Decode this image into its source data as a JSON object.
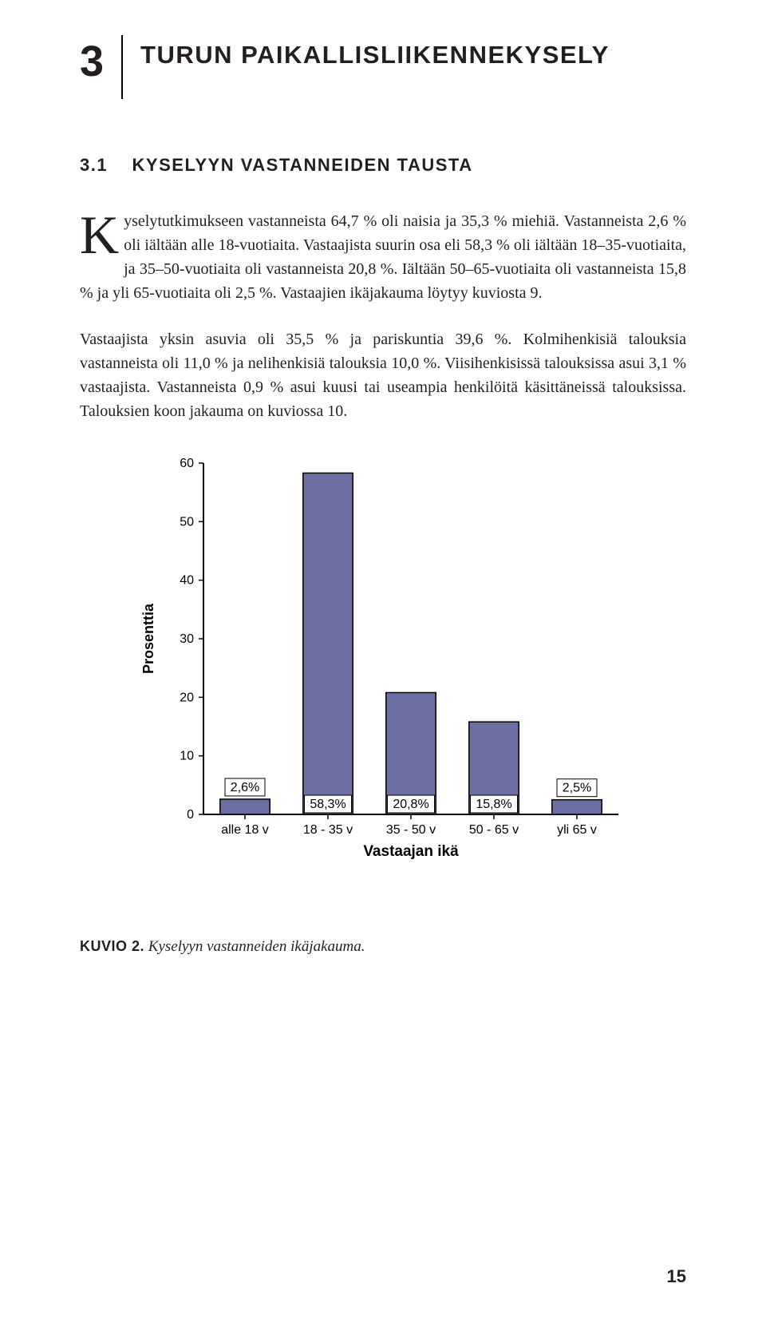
{
  "chapter": {
    "number": "3",
    "title": "TURUN PAIKALLISLIIKENNEKYSELY"
  },
  "section": {
    "number": "3.1",
    "title": "KYSELYYN VASTANNEIDEN TAUSTA"
  },
  "paragraphs": {
    "p1": "Kyselytutkimukseen vastanneista 64,7 % oli naisia ja 35,3 % miehiä. Vastanneista 2,6 % oli iältään alle 18-vuotiaita. Vastaajista suurin osa eli 58,3 % oli iältään 18–35-vuotiaita, ja 35–50-vuotiaita oli vastanneista 20,8 %. Iältään 50–65-vuotiaita oli vastanneista 15,8 % ja yli 65-vuotiaita oli 2,5 %. Vastaajien ikäjakauma löytyy kuviosta 9.",
    "p2": "Vastaajista yksin asuvia oli 35,5 % ja pariskuntia 39,6 %. Kolmihenkisiä talouksia vastanneista oli 11,0 % ja nelihenkisiä talouksia 10,0 %. Viisihenkisissä talouksissa asui 3,1 % vastaajista. Vastanneista 0,9 % asui kuusi tai useampia henkilöitä käsittäneissä talouksissa. Talouksien koon jakauma on kuviossa 10."
  },
  "chart": {
    "type": "bar",
    "ylabel": "Prosenttia",
    "xlabel": "Vastaajan ikä",
    "ymin": 0,
    "ymax": 60,
    "ytick_step": 10,
    "categories": [
      "alle 18 v",
      "18 - 35 v",
      "35 - 50 v",
      "50 - 65 v",
      "yli 65 v"
    ],
    "values": [
      2.6,
      58.3,
      20.8,
      15.8,
      2.5
    ],
    "labels": [
      "2,6%",
      "58,3%",
      "20,8%",
      "15,8%",
      "2,5%"
    ],
    "bar_color": "#6c6fa2",
    "bar_stroke": "#000000",
    "axis_color": "#000000",
    "tick_color": "#000000",
    "background": "#ffffff"
  },
  "caption": {
    "label": "KUVIO 2.",
    "text": " Kyselyyn vastanneiden ikäjakauma."
  },
  "page_number": "15"
}
